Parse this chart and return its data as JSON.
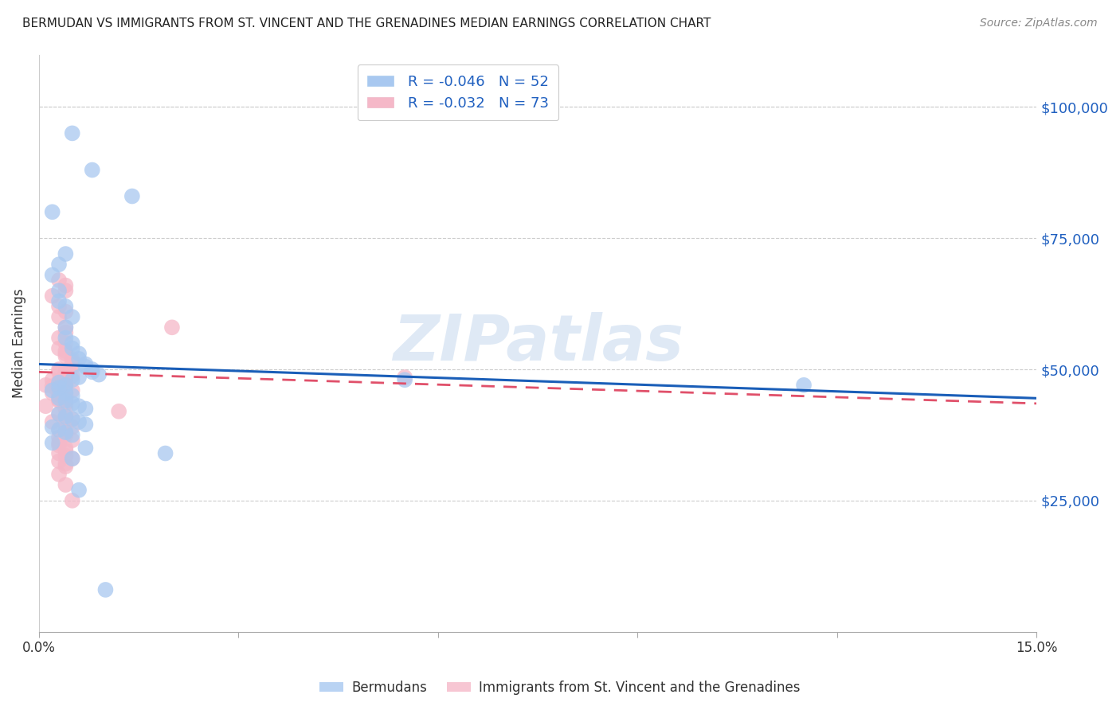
{
  "title": "BERMUDAN VS IMMIGRANTS FROM ST. VINCENT AND THE GRENADINES MEDIAN EARNINGS CORRELATION CHART",
  "source": "Source: ZipAtlas.com",
  "ylabel": "Median Earnings",
  "xlim": [
    0,
    0.15
  ],
  "ylim": [
    0,
    110000
  ],
  "yticks": [
    25000,
    50000,
    75000,
    100000
  ],
  "ytick_labels": [
    "$25,000",
    "$50,000",
    "$75,000",
    "$100,000"
  ],
  "xticks": [
    0.0,
    0.03,
    0.06,
    0.09,
    0.12,
    0.15
  ],
  "xtick_labels": [
    "0.0%",
    "",
    "",
    "",
    "",
    "15.0%"
  ],
  "blue_color": "#a8c8f0",
  "pink_color": "#f5b8c8",
  "blue_line_color": "#1a5eb8",
  "pink_line_color": "#e0506a",
  "background_color": "#ffffff",
  "watermark": "ZIPatlas",
  "blue_r": "-0.046",
  "blue_n": "52",
  "pink_r": "-0.032",
  "pink_n": "73",
  "blue_scatter_x": [
    0.005,
    0.008,
    0.014,
    0.002,
    0.004,
    0.003,
    0.002,
    0.003,
    0.003,
    0.004,
    0.005,
    0.004,
    0.004,
    0.005,
    0.005,
    0.006,
    0.006,
    0.007,
    0.007,
    0.008,
    0.008,
    0.009,
    0.006,
    0.005,
    0.003,
    0.004,
    0.003,
    0.002,
    0.004,
    0.005,
    0.003,
    0.004,
    0.005,
    0.006,
    0.007,
    0.055,
    0.003,
    0.004,
    0.005,
    0.006,
    0.007,
    0.002,
    0.003,
    0.004,
    0.005,
    0.115,
    0.002,
    0.007,
    0.019,
    0.005,
    0.006,
    0.01
  ],
  "blue_scatter_y": [
    95000,
    88000,
    83000,
    80000,
    72000,
    70000,
    68000,
    65000,
    63000,
    62000,
    60000,
    58000,
    56000,
    55000,
    54000,
    53000,
    52000,
    51000,
    50500,
    50000,
    49500,
    49000,
    48500,
    48000,
    47500,
    47000,
    46500,
    46000,
    45500,
    45000,
    44500,
    44000,
    43500,
    43000,
    42500,
    48000,
    41500,
    41000,
    40500,
    40000,
    39500,
    39000,
    38500,
    38000,
    37500,
    47000,
    36000,
    35000,
    34000,
    33000,
    27000,
    8000
  ],
  "pink_scatter_x": [
    0.003,
    0.004,
    0.004,
    0.002,
    0.003,
    0.004,
    0.003,
    0.004,
    0.004,
    0.003,
    0.004,
    0.003,
    0.004,
    0.004,
    0.004,
    0.005,
    0.005,
    0.005,
    0.005,
    0.003,
    0.004,
    0.003,
    0.004,
    0.004,
    0.005,
    0.004,
    0.002,
    0.003,
    0.003,
    0.004,
    0.001,
    0.002,
    0.003,
    0.004,
    0.005,
    0.02,
    0.002,
    0.003,
    0.003,
    0.004,
    0.004,
    0.003,
    0.003,
    0.004,
    0.004,
    0.055,
    0.001,
    0.004,
    0.012,
    0.003,
    0.004,
    0.005,
    0.002,
    0.004,
    0.005,
    0.003,
    0.004,
    0.004,
    0.003,
    0.005,
    0.003,
    0.003,
    0.004,
    0.004,
    0.003,
    0.004,
    0.005,
    0.003,
    0.004,
    0.004,
    0.003,
    0.004,
    0.005
  ],
  "pink_scatter_y": [
    67000,
    66000,
    65000,
    64000,
    62000,
    61000,
    60000,
    58000,
    57000,
    56000,
    55000,
    54000,
    53500,
    53000,
    52500,
    52000,
    51500,
    51000,
    50500,
    50000,
    49800,
    49500,
    49200,
    49000,
    48800,
    48500,
    48000,
    47800,
    47500,
    47200,
    47000,
    46800,
    46500,
    46200,
    46000,
    58000,
    45500,
    45200,
    45000,
    44800,
    44500,
    44200,
    44000,
    43800,
    43500,
    48500,
    43000,
    42500,
    42000,
    41500,
    41000,
    40500,
    40000,
    39500,
    39000,
    38500,
    38000,
    37500,
    37000,
    36500,
    36000,
    35500,
    35000,
    34500,
    34000,
    33500,
    33000,
    32500,
    32000,
    31500,
    30000,
    28000,
    25000
  ],
  "blue_trend_x": [
    0.0,
    0.15
  ],
  "blue_trend_y": [
    51000,
    44500
  ],
  "pink_trend_x": [
    0.0,
    0.15
  ],
  "pink_trend_y": [
    49500,
    43500
  ]
}
